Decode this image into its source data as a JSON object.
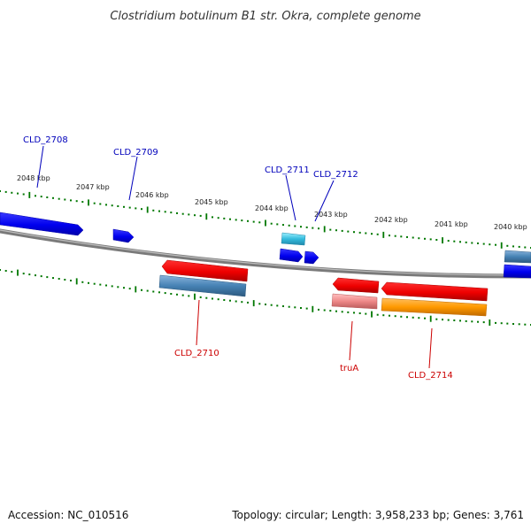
{
  "title": "Clostridium botulinum B1 str. Okra, complete genome",
  "footer": {
    "accession": "Accession: NC_010516",
    "summary": "Topology: circular; Length: 3,958,233 bp; Genes: 3,761"
  },
  "colors": {
    "forward_label": "#0000bb",
    "reverse_label": "#cc0000",
    "tick": "#007700",
    "backbone": "#7a7a7a",
    "forward_gene": "#0000ee",
    "reverse_gene": "#ee0000",
    "forward_feature": "#4682b4",
    "cyan_feature": "#33bbdd",
    "orange_feature": "#ff9900",
    "pink_feature": "#ee8888"
  },
  "ticks": [
    {
      "label": "2048 kbp"
    },
    {
      "label": "2047 kbp"
    },
    {
      "label": "2046 kbp"
    },
    {
      "label": "2045 kbp"
    },
    {
      "label": "2044 kbp"
    },
    {
      "label": "2043 kbp"
    },
    {
      "label": "2042 kbp"
    },
    {
      "label": "2041 kbp"
    },
    {
      "label": "2040 kbp"
    }
  ],
  "genes": {
    "cld_2708": "CLD_2708",
    "cld_2709": "CLD_2709",
    "cld_2710": "CLD_2710",
    "cld_2711": "CLD_2711",
    "cld_2712": "CLD_2712",
    "trua": "truA",
    "cld_2714": "CLD_2714"
  }
}
